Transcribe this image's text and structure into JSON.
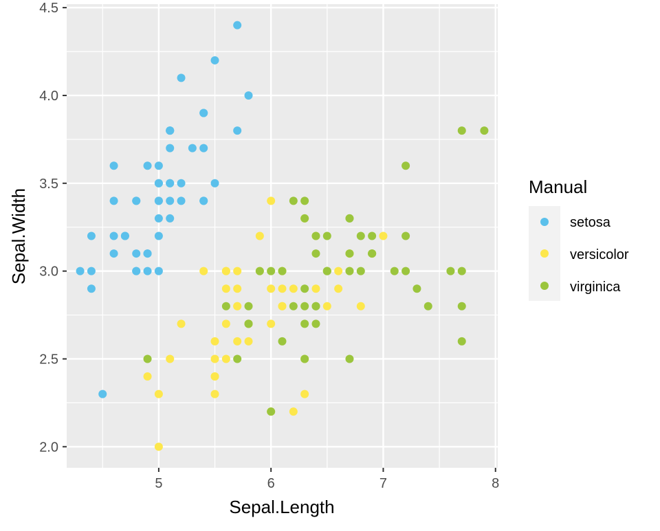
{
  "chart_data": {
    "type": "scatter",
    "xlabel": "Sepal.Length",
    "ylabel": "Sepal.Width",
    "xlim": [
      4.18,
      8.02
    ],
    "ylim": [
      1.88,
      4.52
    ],
    "x_ticks": [
      5,
      6,
      7,
      8
    ],
    "y_ticks": [
      2.0,
      2.5,
      3.0,
      3.5,
      4.0,
      4.5
    ],
    "x_tick_labels": [
      "5",
      "6",
      "7",
      "8"
    ],
    "y_tick_labels": [
      "2.0",
      "2.5",
      "3.0",
      "3.5",
      "4.0",
      "4.5"
    ],
    "grid": true,
    "legend": {
      "title": "Manual",
      "position": "right"
    },
    "series": [
      {
        "name": "setosa",
        "color": "#5BC0EB",
        "points": [
          [
            5.1,
            3.5
          ],
          [
            4.9,
            3.0
          ],
          [
            4.7,
            3.2
          ],
          [
            4.6,
            3.1
          ],
          [
            5.0,
            3.6
          ],
          [
            5.4,
            3.9
          ],
          [
            4.6,
            3.4
          ],
          [
            5.0,
            3.4
          ],
          [
            4.4,
            2.9
          ],
          [
            4.9,
            3.1
          ],
          [
            5.4,
            3.7
          ],
          [
            4.8,
            3.4
          ],
          [
            4.8,
            3.0
          ],
          [
            4.3,
            3.0
          ],
          [
            5.8,
            4.0
          ],
          [
            5.7,
            4.4
          ],
          [
            5.4,
            3.9
          ],
          [
            5.1,
            3.5
          ],
          [
            5.7,
            3.8
          ],
          [
            5.1,
            3.8
          ],
          [
            5.4,
            3.4
          ],
          [
            5.1,
            3.7
          ],
          [
            4.6,
            3.6
          ],
          [
            5.1,
            3.3
          ],
          [
            4.8,
            3.4
          ],
          [
            5.0,
            3.0
          ],
          [
            5.0,
            3.4
          ],
          [
            5.2,
            3.5
          ],
          [
            5.2,
            3.4
          ],
          [
            4.7,
            3.2
          ],
          [
            4.8,
            3.1
          ],
          [
            5.4,
            3.4
          ],
          [
            5.2,
            4.1
          ],
          [
            5.5,
            4.2
          ],
          [
            4.9,
            3.1
          ],
          [
            5.0,
            3.2
          ],
          [
            5.5,
            3.5
          ],
          [
            4.9,
            3.6
          ],
          [
            4.4,
            3.0
          ],
          [
            5.1,
            3.4
          ],
          [
            5.0,
            3.5
          ],
          [
            4.5,
            2.3
          ],
          [
            4.4,
            3.2
          ],
          [
            5.0,
            3.5
          ],
          [
            5.1,
            3.8
          ],
          [
            4.8,
            3.0
          ],
          [
            5.1,
            3.8
          ],
          [
            4.6,
            3.2
          ],
          [
            5.3,
            3.7
          ],
          [
            5.0,
            3.3
          ]
        ]
      },
      {
        "name": "versicolor",
        "color": "#FDE74C",
        "points": [
          [
            7.0,
            3.2
          ],
          [
            6.4,
            3.2
          ],
          [
            6.9,
            3.1
          ],
          [
            5.5,
            2.3
          ],
          [
            6.5,
            2.8
          ],
          [
            5.7,
            2.8
          ],
          [
            6.3,
            3.3
          ],
          [
            4.9,
            2.4
          ],
          [
            6.6,
            2.9
          ],
          [
            5.2,
            2.7
          ],
          [
            5.0,
            2.0
          ],
          [
            5.9,
            3.0
          ],
          [
            6.0,
            2.2
          ],
          [
            6.1,
            2.9
          ],
          [
            5.6,
            2.9
          ],
          [
            6.7,
            3.1
          ],
          [
            5.6,
            3.0
          ],
          [
            5.8,
            2.7
          ],
          [
            6.2,
            2.2
          ],
          [
            5.6,
            2.5
          ],
          [
            5.9,
            3.2
          ],
          [
            6.1,
            2.8
          ],
          [
            6.3,
            2.5
          ],
          [
            6.1,
            2.8
          ],
          [
            6.4,
            2.9
          ],
          [
            6.6,
            3.0
          ],
          [
            6.8,
            2.8
          ],
          [
            6.7,
            3.0
          ],
          [
            6.0,
            2.9
          ],
          [
            5.7,
            2.6
          ],
          [
            5.5,
            2.4
          ],
          [
            5.5,
            2.4
          ],
          [
            5.8,
            2.7
          ],
          [
            6.0,
            2.7
          ],
          [
            5.4,
            3.0
          ],
          [
            6.0,
            3.4
          ],
          [
            6.7,
            3.1
          ],
          [
            6.3,
            2.3
          ],
          [
            5.6,
            3.0
          ],
          [
            5.5,
            2.5
          ],
          [
            5.5,
            2.6
          ],
          [
            6.1,
            3.0
          ],
          [
            5.8,
            2.6
          ],
          [
            5.0,
            2.3
          ],
          [
            5.6,
            2.7
          ],
          [
            5.7,
            3.0
          ],
          [
            5.7,
            2.9
          ],
          [
            6.2,
            2.9
          ],
          [
            5.1,
            2.5
          ],
          [
            5.7,
            2.8
          ]
        ]
      },
      {
        "name": "virginica",
        "color": "#9BC53D",
        "points": [
          [
            6.3,
            3.3
          ],
          [
            5.8,
            2.7
          ],
          [
            7.1,
            3.0
          ],
          [
            6.3,
            2.9
          ],
          [
            6.5,
            3.0
          ],
          [
            7.6,
            3.0
          ],
          [
            4.9,
            2.5
          ],
          [
            7.3,
            2.9
          ],
          [
            6.7,
            2.5
          ],
          [
            7.2,
            3.6
          ],
          [
            6.5,
            3.2
          ],
          [
            6.4,
            2.7
          ],
          [
            6.8,
            3.0
          ],
          [
            5.7,
            2.5
          ],
          [
            5.8,
            2.8
          ],
          [
            6.4,
            3.2
          ],
          [
            6.5,
            3.0
          ],
          [
            7.7,
            3.8
          ],
          [
            7.7,
            2.6
          ],
          [
            6.0,
            2.2
          ],
          [
            6.9,
            3.2
          ],
          [
            5.6,
            2.8
          ],
          [
            7.7,
            2.8
          ],
          [
            6.3,
            2.7
          ],
          [
            6.7,
            3.3
          ],
          [
            7.2,
            3.2
          ],
          [
            6.2,
            2.8
          ],
          [
            6.1,
            3.0
          ],
          [
            6.4,
            2.8
          ],
          [
            7.2,
            3.0
          ],
          [
            7.4,
            2.8
          ],
          [
            7.9,
            3.8
          ],
          [
            6.4,
            2.8
          ],
          [
            6.3,
            2.8
          ],
          [
            6.1,
            2.6
          ],
          [
            7.7,
            3.0
          ],
          [
            6.3,
            3.4
          ],
          [
            6.4,
            3.1
          ],
          [
            6.0,
            3.0
          ],
          [
            6.9,
            3.1
          ],
          [
            6.7,
            3.1
          ],
          [
            6.9,
            3.1
          ],
          [
            5.8,
            2.7
          ],
          [
            6.8,
            3.2
          ],
          [
            6.7,
            3.3
          ],
          [
            6.7,
            3.0
          ],
          [
            6.3,
            2.5
          ],
          [
            6.5,
            3.0
          ],
          [
            6.2,
            3.4
          ],
          [
            5.9,
            3.0
          ]
        ]
      }
    ]
  }
}
